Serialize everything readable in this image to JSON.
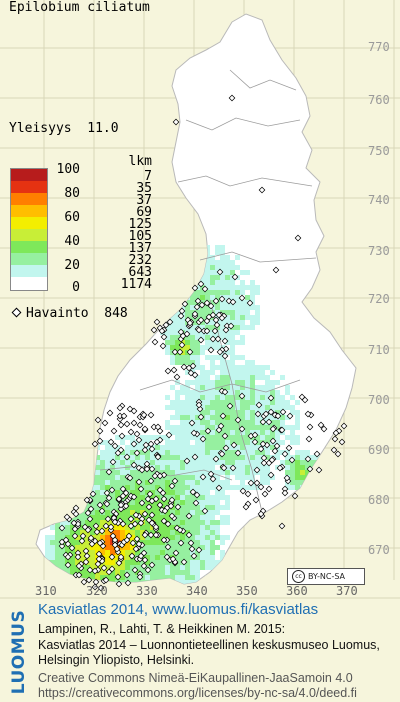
{
  "species": "Epilobium ciliatum",
  "frequency": {
    "label": "Yleisyys",
    "value": "11.0"
  },
  "legend": {
    "count_header": "lkm",
    "classes": [
      {
        "pct": "100",
        "color": "#b71c1c",
        "count": "7"
      },
      {
        "pct": "80",
        "color": "#e53212",
        "count": "35"
      },
      {
        "pct": "",
        "color": "#ff7f00",
        "count": "37"
      },
      {
        "pct": "60",
        "color": "#ffbe00",
        "count": "69"
      },
      {
        "pct": "",
        "color": "#f3ee00",
        "count": "125"
      },
      {
        "pct": "40",
        "color": "#c8ee37",
        "count": "105"
      },
      {
        "pct": "",
        "color": "#7ee85a",
        "count": "137"
      },
      {
        "pct": "20",
        "color": "#96f0a0",
        "count": "232"
      },
      {
        "pct": "",
        "color": "#c2f6ee",
        "count": "643"
      },
      {
        "pct": "0",
        "color": "#ffffff",
        "count": "1174"
      }
    ]
  },
  "observations": {
    "symbol": "diamond-marker-icon",
    "label": "Havainto",
    "count": "848"
  },
  "grid_y_ticks": [
    "770",
    "760",
    "750",
    "740",
    "730",
    "720",
    "710",
    "700",
    "690",
    "680",
    "670"
  ],
  "grid_x_ticks": [
    "310",
    "320",
    "330",
    "340",
    "350",
    "360",
    "370"
  ],
  "license_badge": {
    "icon": "cc-icon",
    "text": "BY-NC-SA"
  },
  "footer": {
    "brand": "LUOMUS",
    "atlas_line": "Kasviatlas 2014, www.luomus.fi/kasviatlas",
    "citation": [
      "Lampinen, R., Lahti, T. & Heikkinen M. 2015:",
      "Kasviatlas 2014 – Luonnontieteellinen keskusmuseo Luomus,",
      "Helsingin Yliopisto, Helsinki."
    ],
    "license": [
      "Creative Commons Nimeä-EiKaupallinen-JaaSamoin 4.0",
      "https://creativecommons.org/licenses/by-nc-sa/4.0/deed.fi"
    ]
  }
}
